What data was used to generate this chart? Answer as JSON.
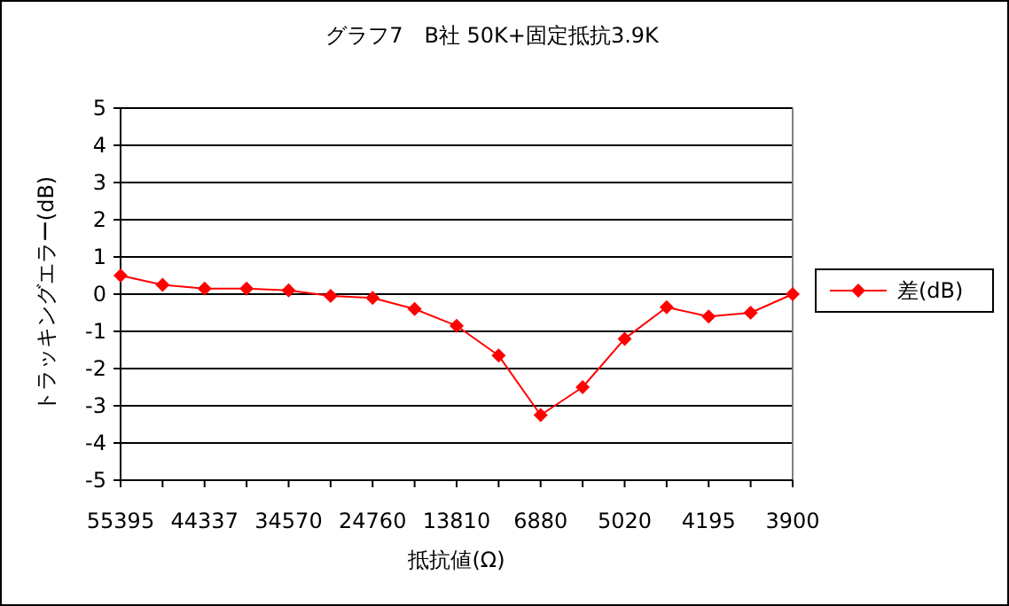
{
  "chart_data": {
    "type": "line",
    "title": "グラフ7　B社 50K+固定抵抗3.9K",
    "xlabel": "抵抗値(Ω)",
    "ylabel": "トラッキングエラー(dB)",
    "categories": [
      "55395",
      null,
      "44337",
      null,
      "34570",
      null,
      "24760",
      null,
      "13810",
      null,
      "6880",
      null,
      "5020",
      null,
      "4195",
      null,
      "3900"
    ],
    "series": [
      {
        "name": "差(dB)",
        "color": "#ff0000",
        "values": [
          0.5,
          0.25,
          0.15,
          0.15,
          0.1,
          -0.05,
          -0.1,
          -0.4,
          -0.85,
          -1.65,
          -3.25,
          -2.5,
          -1.2,
          -0.35,
          -0.6,
          -0.5,
          0
        ]
      }
    ],
    "ylim": [
      -5,
      5
    ],
    "yticks": [
      -5,
      -4,
      -3,
      -2,
      -1,
      0,
      1,
      2,
      3,
      4,
      5
    ],
    "grid": "y",
    "legend": "right",
    "marker": "diamond",
    "line_style": "solid"
  }
}
